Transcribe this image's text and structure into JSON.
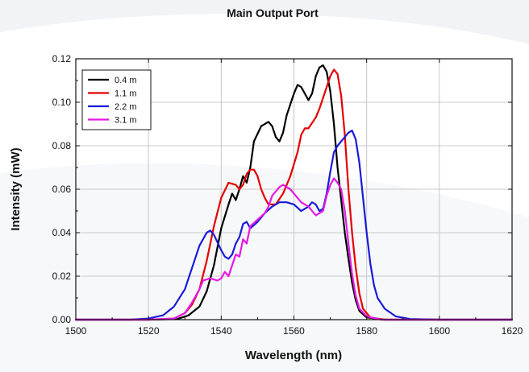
{
  "chart_data": {
    "type": "line",
    "title": "Main Output Port",
    "xlabel": "Wavelength (nm)",
    "ylabel": "Intensity (mW)",
    "xlim": [
      1500,
      1620
    ],
    "ylim": [
      0,
      0.12
    ],
    "xticks": [
      1500,
      1520,
      1540,
      1560,
      1580,
      1600,
      1620
    ],
    "yticks": [
      "0.00",
      "0.02",
      "0.04",
      "0.06",
      "0.08",
      "0.10",
      "0.12"
    ],
    "grid": true,
    "legend_position": "top-left",
    "series": [
      {
        "name": "0.4 m",
        "color": "#000000",
        "points": [
          [
            1500,
            0
          ],
          [
            1520,
            0
          ],
          [
            1528,
            0.0003
          ],
          [
            1531,
            0.002
          ],
          [
            1534,
            0.006
          ],
          [
            1536,
            0.013
          ],
          [
            1538,
            0.025
          ],
          [
            1540,
            0.042
          ],
          [
            1542,
            0.053
          ],
          [
            1543,
            0.058
          ],
          [
            1544,
            0.055
          ],
          [
            1545,
            0.06
          ],
          [
            1546,
            0.066
          ],
          [
            1547,
            0.063
          ],
          [
            1548,
            0.07
          ],
          [
            1549,
            0.082
          ],
          [
            1551,
            0.089
          ],
          [
            1553,
            0.091
          ],
          [
            1554,
            0.089
          ],
          [
            1555,
            0.084
          ],
          [
            1556,
            0.082
          ],
          [
            1557,
            0.086
          ],
          [
            1558,
            0.094
          ],
          [
            1560,
            0.104
          ],
          [
            1561,
            0.108
          ],
          [
            1562,
            0.107
          ],
          [
            1563,
            0.104
          ],
          [
            1564,
            0.101
          ],
          [
            1565,
            0.104
          ],
          [
            1566,
            0.112
          ],
          [
            1567,
            0.116
          ],
          [
            1568,
            0.117
          ],
          [
            1569,
            0.114
          ],
          [
            1570,
            0.105
          ],
          [
            1571,
            0.09
          ],
          [
            1572,
            0.07
          ],
          [
            1573,
            0.055
          ],
          [
            1574,
            0.04
          ],
          [
            1575,
            0.028
          ],
          [
            1576,
            0.017
          ],
          [
            1577,
            0.009
          ],
          [
            1578,
            0.004
          ],
          [
            1580,
            0.001
          ],
          [
            1585,
            0
          ],
          [
            1620,
            0
          ]
        ]
      },
      {
        "name": "1.1 m",
        "color": "#e60000",
        "points": [
          [
            1500,
            0
          ],
          [
            1520,
            0
          ],
          [
            1527,
            0.0005
          ],
          [
            1530,
            0.003
          ],
          [
            1532,
            0.007
          ],
          [
            1534,
            0.014
          ],
          [
            1536,
            0.027
          ],
          [
            1538,
            0.043
          ],
          [
            1540,
            0.056
          ],
          [
            1542,
            0.063
          ],
          [
            1544,
            0.062
          ],
          [
            1545,
            0.06
          ],
          [
            1546,
            0.062
          ],
          [
            1547,
            0.067
          ],
          [
            1548,
            0.069
          ],
          [
            1549,
            0.069
          ],
          [
            1550,
            0.066
          ],
          [
            1551,
            0.06
          ],
          [
            1552,
            0.056
          ],
          [
            1553,
            0.053
          ],
          [
            1555,
            0.053
          ],
          [
            1557,
            0.058
          ],
          [
            1559,
            0.066
          ],
          [
            1561,
            0.077
          ],
          [
            1562,
            0.085
          ],
          [
            1563,
            0.088
          ],
          [
            1564,
            0.088
          ],
          [
            1566,
            0.093
          ],
          [
            1567,
            0.097
          ],
          [
            1569,
            0.107
          ],
          [
            1570,
            0.112
          ],
          [
            1571,
            0.115
          ],
          [
            1572,
            0.113
          ],
          [
            1573,
            0.103
          ],
          [
            1574,
            0.085
          ],
          [
            1575,
            0.06
          ],
          [
            1576,
            0.04
          ],
          [
            1577,
            0.024
          ],
          [
            1578,
            0.012
          ],
          [
            1579,
            0.005
          ],
          [
            1581,
            0.001
          ],
          [
            1585,
            0
          ],
          [
            1620,
            0
          ]
        ]
      },
      {
        "name": "2.2 m",
        "color": "#1a1adb",
        "points": [
          [
            1500,
            0
          ],
          [
            1515,
            0
          ],
          [
            1520,
            0.0005
          ],
          [
            1524,
            0.002
          ],
          [
            1527,
            0.006
          ],
          [
            1530,
            0.014
          ],
          [
            1532,
            0.024
          ],
          [
            1534,
            0.034
          ],
          [
            1536,
            0.04
          ],
          [
            1537,
            0.041
          ],
          [
            1538,
            0.039
          ],
          [
            1540,
            0.032
          ],
          [
            1541,
            0.029
          ],
          [
            1542,
            0.028
          ],
          [
            1543,
            0.03
          ],
          [
            1544,
            0.035
          ],
          [
            1545,
            0.038
          ],
          [
            1546,
            0.044
          ],
          [
            1547,
            0.045
          ],
          [
            1548,
            0.042
          ],
          [
            1550,
            0.045
          ],
          [
            1552,
            0.049
          ],
          [
            1554,
            0.052
          ],
          [
            1556,
            0.054
          ],
          [
            1558,
            0.054
          ],
          [
            1560,
            0.053
          ],
          [
            1562,
            0.05
          ],
          [
            1564,
            0.052
          ],
          [
            1565,
            0.054
          ],
          [
            1566,
            0.053
          ],
          [
            1567,
            0.05
          ],
          [
            1568,
            0.051
          ],
          [
            1569,
            0.058
          ],
          [
            1570,
            0.068
          ],
          [
            1571,
            0.077
          ],
          [
            1572,
            0.08
          ],
          [
            1574,
            0.084
          ],
          [
            1575,
            0.086
          ],
          [
            1576,
            0.087
          ],
          [
            1577,
            0.083
          ],
          [
            1578,
            0.072
          ],
          [
            1579,
            0.056
          ],
          [
            1580,
            0.04
          ],
          [
            1581,
            0.026
          ],
          [
            1582,
            0.016
          ],
          [
            1583,
            0.01
          ],
          [
            1585,
            0.005
          ],
          [
            1588,
            0.0015
          ],
          [
            1592,
            0.0003
          ],
          [
            1600,
            0
          ],
          [
            1620,
            0
          ]
        ]
      },
      {
        "name": "3.1 m",
        "color": "#e619e6",
        "points": [
          [
            1500,
            0
          ],
          [
            1520,
            0
          ],
          [
            1527,
            0.0005
          ],
          [
            1530,
            0.003
          ],
          [
            1532,
            0.008
          ],
          [
            1534,
            0.014
          ],
          [
            1535,
            0.018
          ],
          [
            1537,
            0.019
          ],
          [
            1539,
            0.018
          ],
          [
            1540,
            0.019
          ],
          [
            1541,
            0.022
          ],
          [
            1542,
            0.02
          ],
          [
            1543,
            0.025
          ],
          [
            1544,
            0.03
          ],
          [
            1545,
            0.029
          ],
          [
            1546,
            0.037
          ],
          [
            1547,
            0.035
          ],
          [
            1548,
            0.043
          ],
          [
            1550,
            0.046
          ],
          [
            1552,
            0.049
          ],
          [
            1553,
            0.052
          ],
          [
            1554,
            0.057
          ],
          [
            1556,
            0.061
          ],
          [
            1557,
            0.062
          ],
          [
            1559,
            0.06
          ],
          [
            1561,
            0.056
          ],
          [
            1562,
            0.054
          ],
          [
            1564,
            0.052
          ],
          [
            1566,
            0.048
          ],
          [
            1568,
            0.05
          ],
          [
            1569,
            0.057
          ],
          [
            1570,
            0.062
          ],
          [
            1571,
            0.065
          ],
          [
            1572,
            0.063
          ],
          [
            1573,
            0.06
          ],
          [
            1574,
            0.05
          ],
          [
            1575,
            0.035
          ],
          [
            1576,
            0.021
          ],
          [
            1577,
            0.011
          ],
          [
            1578,
            0.005
          ],
          [
            1580,
            0.0015
          ],
          [
            1584,
            0
          ],
          [
            1620,
            0
          ]
        ]
      }
    ]
  }
}
